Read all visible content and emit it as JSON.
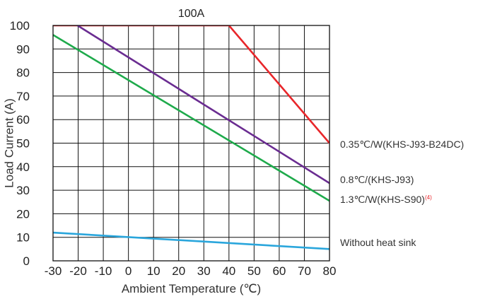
{
  "chart_data": {
    "type": "line",
    "title": "100A",
    "xlabel": "Ambient Temperature (℃)",
    "ylabel": "Load Current (A)",
    "xlim": [
      -30,
      80
    ],
    "ylim": [
      0,
      100
    ],
    "xticks": [
      "-30",
      "-20",
      "-10",
      "0",
      "10",
      "20",
      "30",
      "40",
      "50",
      "60",
      "70",
      "80"
    ],
    "yticks": [
      "0",
      "10",
      "20",
      "30",
      "40",
      "50",
      "60",
      "70",
      "80",
      "90",
      "100"
    ],
    "grid": true,
    "series": [
      {
        "name": "0.35℃/W(KHS-J93-B24DC)",
        "color": "#e8262a",
        "points": [
          [
            -30,
            100
          ],
          [
            40,
            100
          ],
          [
            80,
            50
          ]
        ]
      },
      {
        "name": "0.8℃/(KHS-J93)",
        "color": "#6a2c91",
        "points": [
          [
            -30,
            106.5
          ],
          [
            80,
            33
          ]
        ]
      },
      {
        "name": "1.3℃/W(KHS-S90)",
        "note": "(4)",
        "color": "#1eaa4b",
        "points": [
          [
            -30,
            96
          ],
          [
            80,
            25.5
          ]
        ]
      },
      {
        "name": "Without heat sink",
        "color": "#2aa6dc",
        "points": [
          [
            -30,
            12
          ],
          [
            80,
            5
          ]
        ]
      }
    ]
  }
}
